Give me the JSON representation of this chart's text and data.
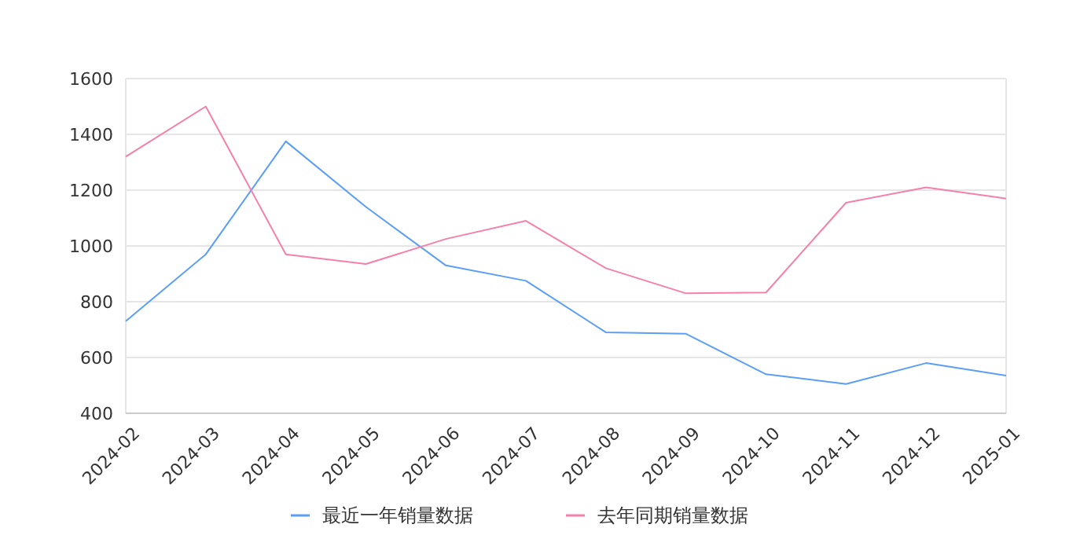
{
  "chart_data": {
    "type": "line",
    "categories": [
      "2024-02",
      "2024-03",
      "2024-04",
      "2024-05",
      "2024-06",
      "2024-07",
      "2024-08",
      "2024-09",
      "2024-10",
      "2024-11",
      "2024-12",
      "2025-01"
    ],
    "series": [
      {
        "name": "最近一年销量数据",
        "color": "#5b9ef7",
        "values": [
          730,
          970,
          1375,
          1140,
          930,
          875,
          690,
          685,
          540,
          505,
          580,
          535
        ]
      },
      {
        "name": "去年同期销量数据",
        "color": "#f580aa",
        "values": [
          1320,
          1500,
          970,
          935,
          1025,
          1090,
          920,
          830,
          833,
          1155,
          1210,
          1170
        ]
      }
    ],
    "ylim": [
      400,
      1600
    ],
    "yticks": [
      400,
      600,
      800,
      1000,
      1200,
      1400,
      1600
    ],
    "grid": "y",
    "legend": "bottom",
    "marker": "none",
    "line_style": "solid"
  }
}
